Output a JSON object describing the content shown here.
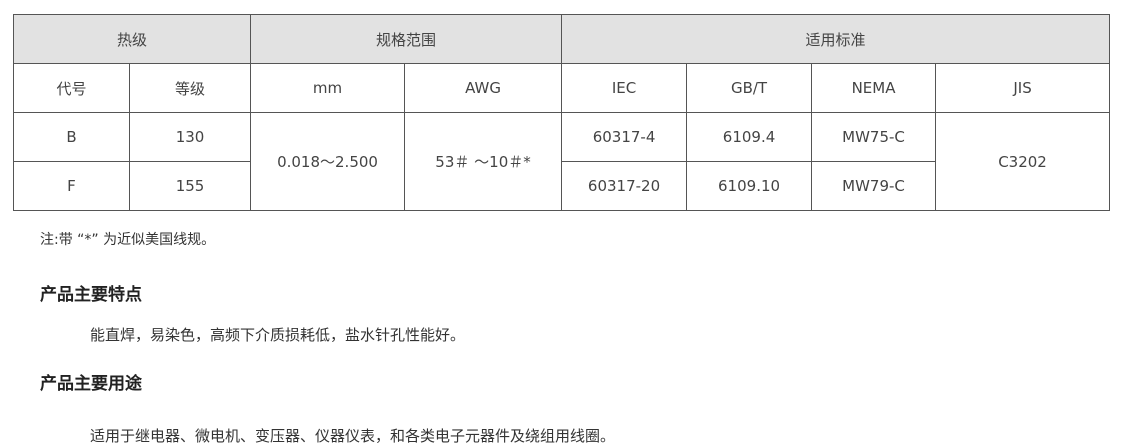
{
  "table": {
    "group_headers": [
      "热级",
      "规格范围",
      "适用标准"
    ],
    "sub_headers": [
      "代号",
      "等级",
      "mm",
      "AWG",
      "IEC",
      "GB/T",
      "NEMA",
      "JIS"
    ],
    "rows": [
      {
        "code": "B",
        "class": "130",
        "iec": "60317-4",
        "gbt": "6109.4",
        "nema": "MW75-C"
      },
      {
        "code": "F",
        "class": "155",
        "iec": "60317-20",
        "gbt": "6109.10",
        "nema": "MW79-C"
      }
    ],
    "mm": "0.018～2.500",
    "awg": "53＃ ～10＃*",
    "jis": "C3202"
  },
  "note": "注:带 “*” 为近似美国线规。",
  "features": {
    "title": "产品主要特点",
    "text": "能直焊，易染色，高频下介质损耗低，盐水针孔性能好。"
  },
  "uses": {
    "title": "产品主要用途",
    "text": "适用于继电器、微电机、变压器、仪器仪表，和各类电子元器件及绕组用线圈。"
  }
}
